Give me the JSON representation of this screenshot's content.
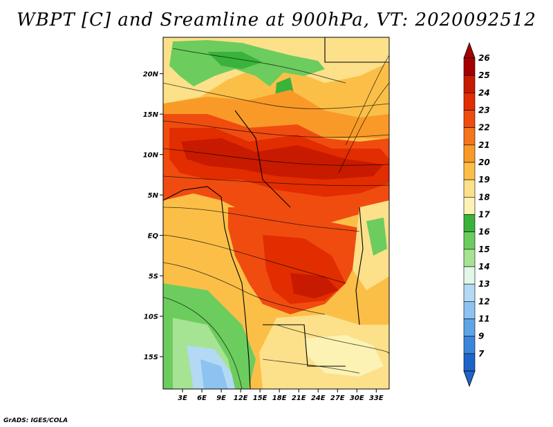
{
  "title": "WBPT [C] and Sreamline at 900hPa, VT: 2020092512",
  "footer": "GrADS: IGES/COLA",
  "map": {
    "lat_labels": [
      "20N",
      "15N",
      "10N",
      "5N",
      "EQ",
      "5S",
      "10S",
      "15S"
    ],
    "lat_values": [
      20,
      15,
      10,
      5,
      0,
      -5,
      -10,
      -15
    ],
    "lon_labels": [
      "3E",
      "6E",
      "9E",
      "12E",
      "15E",
      "18E",
      "21E",
      "24E",
      "27E",
      "30E",
      "33E"
    ],
    "lon_values": [
      3,
      6,
      9,
      12,
      15,
      18,
      21,
      24,
      27,
      30,
      33
    ],
    "lat_range": [
      -19,
      24.5
    ],
    "lon_range": [
      0,
      35
    ]
  },
  "colorbar": {
    "labels": [
      "26",
      "25",
      "24",
      "23",
      "22",
      "21",
      "20",
      "19",
      "18",
      "17",
      "16",
      "15",
      "14",
      "13",
      "12",
      "11",
      "9",
      "7"
    ],
    "colors": [
      "#a50000",
      "#c81a00",
      "#e22d00",
      "#f04c10",
      "#f5741c",
      "#f99a28",
      "#fbbf48",
      "#fce08a",
      "#fbf2b4",
      "#3ab33a",
      "#6ccc5e",
      "#a6e393",
      "#e1f8e6",
      "#b4d9f5",
      "#8cc3f0",
      "#5ea5e6",
      "#3b86dc",
      "#1e64c8"
    ],
    "top_arrow_color": "#a50000",
    "bottom_arrow_color": "#1e64c8"
  }
}
